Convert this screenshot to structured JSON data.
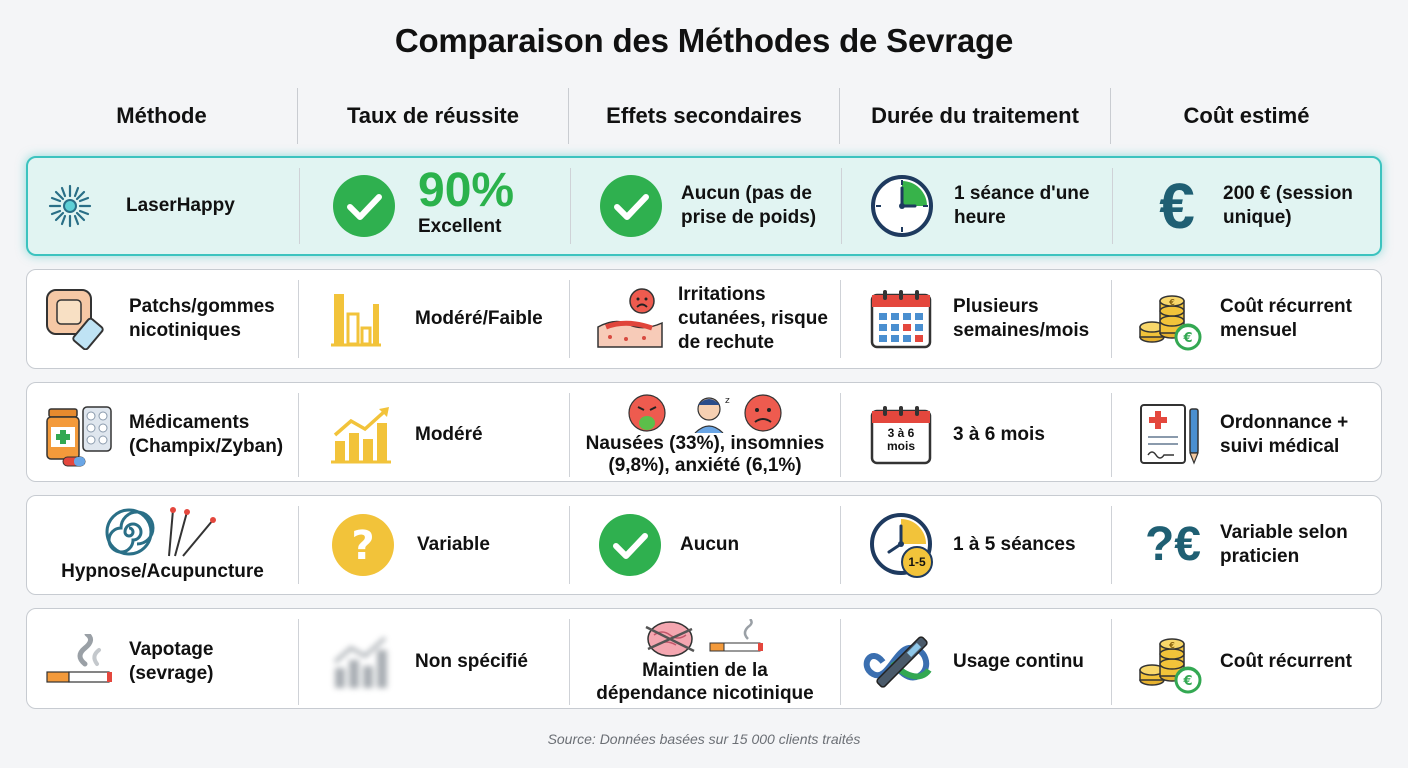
{
  "title": "Comparaison des Méthodes de Sevrage",
  "headers": [
    "Méthode",
    "Taux de réussite",
    "Effets secondaires",
    "Durée du traitement",
    "Coût estimé"
  ],
  "accent_color": "#3cc3bf",
  "rows": [
    {
      "method": "LaserHappy",
      "method_icon": "laser-burst-icon",
      "success_value": "90%",
      "success_label": "Excellent",
      "success_icon": "green-check-icon",
      "side_effects": "Aucun (pas de prise de poids)",
      "side_icon": "green-check-icon",
      "duration": "1 séance d'une heure",
      "duration_icon": "clock-icon",
      "cost": "200 € (session unique)",
      "cost_icon": "euro-icon",
      "highlighted": true
    },
    {
      "method": "Patchs/gommes nicotiniques",
      "method_icon": "patch-gum-icon",
      "success": "Modéré/Faible",
      "success_icon": "bar-chart-low-icon",
      "side_effects": "Irritations cutanées, risque de rechute",
      "side_icon": "irritated-skin-icon",
      "duration": "Plusieurs semaines/mois",
      "duration_icon": "calendar-icon",
      "cost": "Coût récurrent mensuel",
      "cost_icon": "coins-recurring-icon"
    },
    {
      "method": "Médicaments (Champix/Zyban)",
      "method_icon": "medication-icon",
      "success": "Modéré",
      "success_icon": "bar-chart-up-icon",
      "side_effects": "Nausées (33%), insomnies (9,8%), anxiété (6,1%)",
      "side_icon": "nausea-insomnia-anxiety-icon",
      "duration": "3 à 6 mois",
      "calendar_text": "3 à 6 mois",
      "duration_icon": "calendar-icon",
      "cost": "Ordonnance + suivi médical",
      "cost_icon": "prescription-icon"
    },
    {
      "method": "Hypnose/Acupuncture",
      "method_icon": "spiral-needles-icon",
      "success": "Variable",
      "success_icon": "question-icon",
      "side_effects": "Aucun",
      "side_icon": "green-check-icon",
      "duration": "1 à 5 séances",
      "clock_badge": "1-5",
      "duration_icon": "clock-icon",
      "cost": "Variable selon praticien",
      "cost_symbol": "?€",
      "cost_icon": "question-euro-icon"
    },
    {
      "method": "Vapotage (sevrage)",
      "method_icon": "cigarette-icon",
      "success": "Non spécifié",
      "success_icon": "blurred-chart-icon",
      "side_effects": "Maintien de la dépendance nicotinique",
      "side_icon": "brain-cigarette-icon",
      "duration": "Usage continu",
      "duration_icon": "vape-infinity-icon",
      "cost": "Coût récurrent",
      "cost_icon": "coins-recurring-icon"
    }
  ],
  "source": "Source: Données basées sur 15 000 clients traités"
}
